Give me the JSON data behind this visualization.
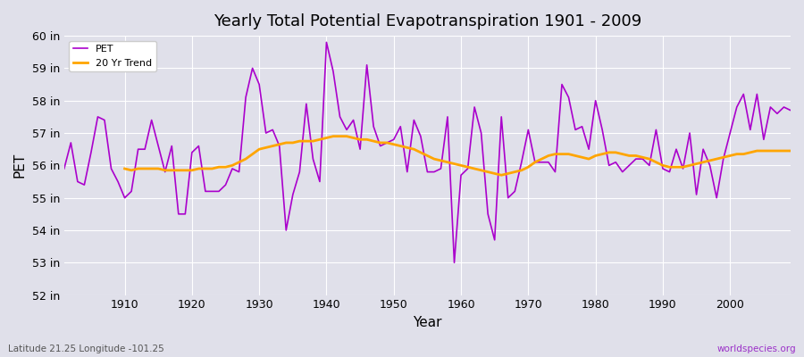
{
  "title": "Yearly Total Potential Evapotranspiration 1901 - 2009",
  "xlabel": "Year",
  "ylabel": "PET",
  "footnote_left": "Latitude 21.25 Longitude -101.25",
  "footnote_right": "worldspecies.org",
  "ylim": [
    52,
    60
  ],
  "ytick_labels": [
    "52 in",
    "53 in",
    "54 in",
    "55 in",
    "56 in",
    "57 in",
    "58 in",
    "59 in",
    "60 in"
  ],
  "ytick_values": [
    52,
    53,
    54,
    55,
    56,
    57,
    58,
    59,
    60
  ],
  "background_color": "#e0e0ea",
  "plot_bg_color": "#e0e0ea",
  "line_color_pet": "#aa00cc",
  "line_color_trend": "#ffa500",
  "legend_labels": [
    "PET",
    "20 Yr Trend"
  ],
  "years": [
    1901,
    1902,
    1903,
    1904,
    1905,
    1906,
    1907,
    1908,
    1909,
    1910,
    1911,
    1912,
    1913,
    1914,
    1915,
    1916,
    1917,
    1918,
    1919,
    1920,
    1921,
    1922,
    1923,
    1924,
    1925,
    1926,
    1927,
    1928,
    1929,
    1930,
    1931,
    1932,
    1933,
    1934,
    1935,
    1936,
    1937,
    1938,
    1939,
    1940,
    1941,
    1942,
    1943,
    1944,
    1945,
    1946,
    1947,
    1948,
    1949,
    1950,
    1951,
    1952,
    1953,
    1954,
    1955,
    1956,
    1957,
    1958,
    1959,
    1960,
    1961,
    1962,
    1963,
    1964,
    1965,
    1966,
    1967,
    1968,
    1969,
    1970,
    1971,
    1972,
    1973,
    1974,
    1975,
    1976,
    1977,
    1978,
    1979,
    1980,
    1981,
    1982,
    1983,
    1984,
    1985,
    1986,
    1987,
    1988,
    1989,
    1990,
    1991,
    1992,
    1993,
    1994,
    1995,
    1996,
    1997,
    1998,
    1999,
    2000,
    2001,
    2002,
    2003,
    2004,
    2005,
    2006,
    2007,
    2008,
    2009
  ],
  "pet_values": [
    55.9,
    56.7,
    55.5,
    55.4,
    56.4,
    57.5,
    57.4,
    55.9,
    55.5,
    55.0,
    55.2,
    56.5,
    56.5,
    57.4,
    56.6,
    55.8,
    56.6,
    54.5,
    54.5,
    56.4,
    56.6,
    55.2,
    55.2,
    55.2,
    55.4,
    55.9,
    55.8,
    58.1,
    59.0,
    58.5,
    57.0,
    57.1,
    56.6,
    54.0,
    55.1,
    55.8,
    57.9,
    56.2,
    55.5,
    59.8,
    58.9,
    57.5,
    57.1,
    57.4,
    56.5,
    59.1,
    57.2,
    56.6,
    56.7,
    56.8,
    57.2,
    55.8,
    57.4,
    56.9,
    55.8,
    55.8,
    55.9,
    57.5,
    53.0,
    55.7,
    55.9,
    57.8,
    57.0,
    54.5,
    53.7,
    57.5,
    55.0,
    55.2,
    56.1,
    57.1,
    56.1,
    56.1,
    56.1,
    55.8,
    58.5,
    58.1,
    57.1,
    57.2,
    56.5,
    58.0,
    57.1,
    56.0,
    56.1,
    55.8,
    56.0,
    56.2,
    56.2,
    56.0,
    57.1,
    55.9,
    55.8,
    56.5,
    55.9,
    57.0,
    55.1,
    56.5,
    56.0,
    55.0,
    56.2,
    57.0,
    57.8,
    58.2,
    57.1,
    58.2,
    56.8,
    57.8,
    57.6,
    57.8,
    57.7
  ],
  "trend_years": [
    1910,
    1911,
    1912,
    1913,
    1914,
    1915,
    1916,
    1917,
    1918,
    1919,
    1920,
    1921,
    1922,
    1923,
    1924,
    1925,
    1926,
    1927,
    1928,
    1929,
    1930,
    1931,
    1932,
    1933,
    1934,
    1935,
    1936,
    1937,
    1938,
    1939,
    1940,
    1941,
    1942,
    1943,
    1944,
    1945,
    1946,
    1947,
    1948,
    1949,
    1950,
    1951,
    1952,
    1953,
    1954,
    1955,
    1956,
    1957,
    1958,
    1959,
    1960,
    1961,
    1962,
    1963,
    1964,
    1965,
    1966,
    1967,
    1968,
    1969,
    1970,
    1971,
    1972,
    1973,
    1974,
    1975,
    1976,
    1977,
    1978,
    1979,
    1980,
    1981,
    1982,
    1983,
    1984,
    1985,
    1986,
    1987,
    1988,
    1989,
    1990,
    1991,
    1992,
    1993,
    1994,
    1995,
    1996,
    1997,
    1998,
    1999,
    2000,
    2001,
    2002,
    2003,
    2004,
    2005,
    2006,
    2007,
    2008,
    2009
  ],
  "trend_values": [
    55.9,
    55.85,
    55.9,
    55.9,
    55.9,
    55.9,
    55.85,
    55.85,
    55.85,
    55.85,
    55.85,
    55.9,
    55.9,
    55.9,
    55.95,
    55.95,
    56.0,
    56.1,
    56.2,
    56.35,
    56.5,
    56.55,
    56.6,
    56.65,
    56.7,
    56.7,
    56.75,
    56.75,
    56.75,
    56.8,
    56.85,
    56.9,
    56.9,
    56.9,
    56.85,
    56.8,
    56.8,
    56.75,
    56.7,
    56.7,
    56.65,
    56.6,
    56.55,
    56.5,
    56.4,
    56.3,
    56.2,
    56.15,
    56.1,
    56.05,
    56.0,
    55.95,
    55.9,
    55.85,
    55.8,
    55.75,
    55.7,
    55.75,
    55.8,
    55.85,
    55.95,
    56.1,
    56.2,
    56.3,
    56.35,
    56.35,
    56.35,
    56.3,
    56.25,
    56.2,
    56.3,
    56.35,
    56.4,
    56.4,
    56.35,
    56.3,
    56.3,
    56.25,
    56.2,
    56.1,
    56.0,
    55.95,
    55.95,
    55.95,
    56.0,
    56.05,
    56.1,
    56.15,
    56.2,
    56.25,
    56.3,
    56.35,
    56.35,
    56.4,
    56.45,
    56.45,
    56.45,
    56.45,
    56.45,
    56.45
  ]
}
